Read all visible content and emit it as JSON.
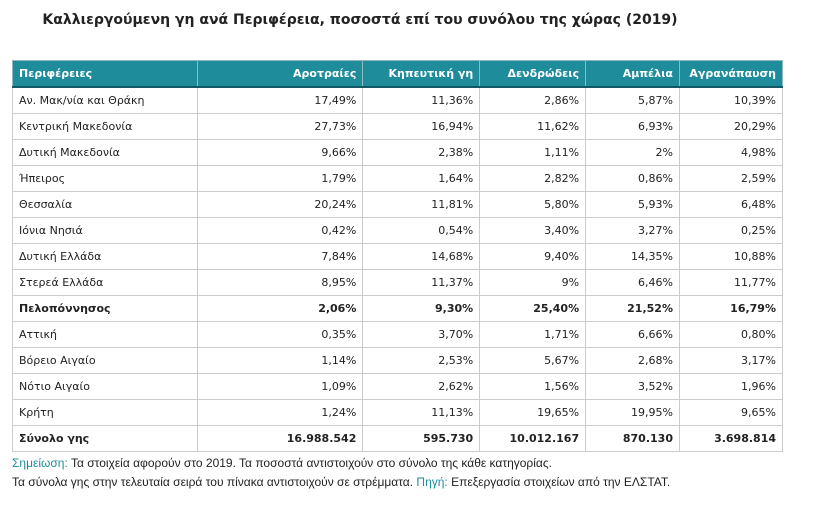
{
  "title": "Καλλιεργούμενη γη ανά Περιφέρεια, ποσοστά επί του συνόλου της χώρας (2019)",
  "table": {
    "header": [
      "Περιφέρειες",
      "Αροτραίες",
      "Κηπευτική γη",
      "Δενδρώδεις",
      "Αμπέλια",
      "Αγρανάπαυση"
    ],
    "rows": [
      [
        "Αν. Μακ/νία και Θράκη",
        "17,49%",
        "11,36%",
        "2,86%",
        "5,87%",
        "10,39%"
      ],
      [
        "Κεντρική Μακεδονία",
        "27,73%",
        "16,94%",
        "11,62%",
        "6,93%",
        "20,29%"
      ],
      [
        "Δυτική Μακεδονία",
        "9,66%",
        "2,38%",
        "1,11%",
        "2%",
        "4,98%"
      ],
      [
        "Ήπειρος",
        "1,79%",
        "1,64%",
        "2,82%",
        "0,86%",
        "2,59%"
      ],
      [
        "Θεσσαλία",
        "20,24%",
        "11,81%",
        "5,80%",
        "5,93%",
        "6,48%"
      ],
      [
        "Ιόνια Νησιά",
        "0,42%",
        "0,54%",
        "3,40%",
        "3,27%",
        "0,25%"
      ],
      [
        "Δυτική Ελλάδα",
        "7,84%",
        "14,68%",
        "9,40%",
        "14,35%",
        "10,88%"
      ],
      [
        "Στερεά Ελλάδα",
        "8,95%",
        "11,37%",
        "9%",
        "6,46%",
        "11,77%"
      ],
      [
        "Πελοπόννησος",
        "2,06%",
        "9,30%",
        "25,40%",
        "21,52%",
        "16,79%"
      ],
      [
        "Αττική",
        "0,35%",
        "3,70%",
        "1,71%",
        "6,66%",
        "0,80%"
      ],
      [
        "Βόρειο Αιγαίο",
        "1,14%",
        "2,53%",
        "5,67%",
        "2,68%",
        "3,17%"
      ],
      [
        "Νότιο Αιγαίο",
        "1,09%",
        "2,62%",
        "1,56%",
        "3,52%",
        "1,96%"
      ],
      [
        "Κρήτη",
        "1,24%",
        "11,13%",
        "19,65%",
        "19,95%",
        "9,65%"
      ],
      [
        "Σύνολο γης",
        "16.988.542",
        "595.730",
        "10.012.167",
        "870.130",
        "3.698.814"
      ]
    ]
  },
  "notes": {
    "note_label": "Σημείωση:",
    "note_text": "Τα στοιχεία αφορούν στο 2019. Τα ποσοστά αντιστοιχούν στο σύνολο της κάθε κατηγορίας.",
    "units_text": "Τα σύνολα γης στην τελευταία σειρά του πίνακα αντιστοιχούν σε στρέμματα.",
    "source_label": "Πηγή:",
    "source_text": "Επεξεργασία στοιχείων από την ΕΛΣΤΑΤ."
  }
}
